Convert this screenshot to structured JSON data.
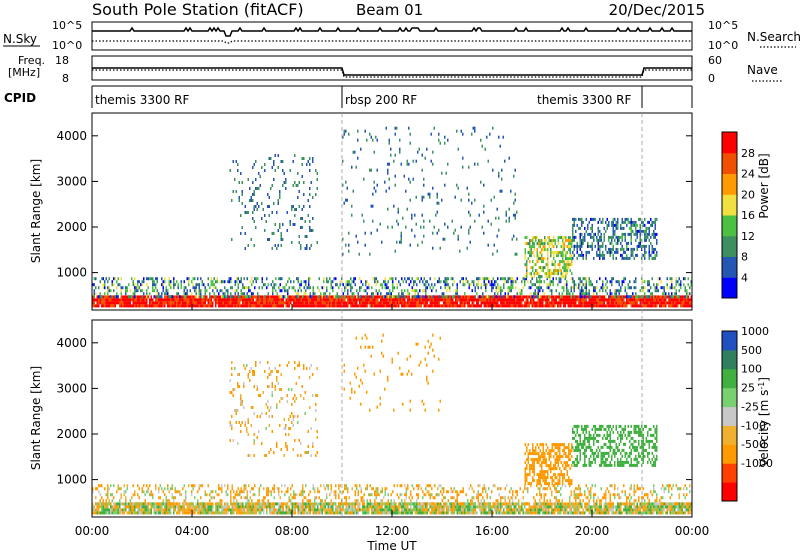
{
  "header": {
    "station": "South Pole Station (fitACF)",
    "beam": "Beam 01",
    "date": "20/Dec/2015"
  },
  "noise_panel": {
    "left_label": "N.Sky",
    "left_ticks": [
      "10^5",
      "10^0"
    ],
    "right_label": "N.Search",
    "right_ticks": [
      "10^5",
      "10^0"
    ]
  },
  "freq_panel": {
    "left_label_1": "Freq.",
    "left_label_2": "[MHz]",
    "left_ticks": [
      "18",
      "8"
    ],
    "right_label": "Nave",
    "right_ticks": [
      "60",
      "0"
    ]
  },
  "cpid_panel": {
    "label": "CPID",
    "programs": [
      {
        "name": "themis 3300 RF",
        "start_hour": 0,
        "end_hour": 10
      },
      {
        "name": "rbsp 200 RF",
        "start_hour": 10,
        "end_hour": 22
      },
      {
        "name": "themis 3300 RF",
        "start_hour": 22,
        "end_hour": 24
      }
    ]
  },
  "x_axis": {
    "label": "Time UT",
    "ticks": [
      "00:00",
      "04:00",
      "08:00",
      "12:00",
      "16:00",
      "20:00",
      "00:00"
    ],
    "range_hours": [
      0,
      24
    ]
  },
  "colors": {
    "power": [
      "#0000ff",
      "#2656b4",
      "#3c9060",
      "#4cc040",
      "#f0e040",
      "#ff9a00",
      "#f05000",
      "#ff0000"
    ],
    "velocity": [
      "#ff0000",
      "#ff4000",
      "#ff9a00",
      "#f0b030",
      "#c8c8c8",
      "#78d070",
      "#40b040",
      "#308060",
      "#2050c0"
    ]
  },
  "chart_data": [
    {
      "type": "heatmap",
      "title": "",
      "xlabel": "Time UT",
      "ylabel": "Slant Range [km]",
      "xlim": [
        0,
        24
      ],
      "ylim": [
        180,
        4500
      ],
      "y_ticks": [
        1000,
        2000,
        3000,
        4000
      ],
      "colorbar": {
        "label": "Power [dB]",
        "range": [
          0,
          32
        ],
        "ticks": [
          "4",
          "8",
          "12",
          "16",
          "20",
          "24",
          "28"
        ],
        "tick_values": [
          4,
          8,
          12,
          16,
          20,
          24,
          28
        ]
      },
      "echo_regions": [
        {
          "t0": 0.0,
          "t1": 24.0,
          "r0": 250,
          "r1": 500,
          "level": 30,
          "density": 0.95,
          "spread": 6
        },
        {
          "t0": 0.0,
          "t1": 24.0,
          "r0": 500,
          "r1": 900,
          "level": 10,
          "density": 0.35,
          "spread": 8
        },
        {
          "t0": 5.5,
          "t1": 9.0,
          "r0": 1500,
          "r1": 3600,
          "level": 8,
          "density": 0.1,
          "spread": 4
        },
        {
          "t0": 17.3,
          "t1": 19.2,
          "r0": 900,
          "r1": 1800,
          "level": 16,
          "density": 0.55,
          "spread": 6
        },
        {
          "t0": 19.2,
          "t1": 22.6,
          "r0": 1300,
          "r1": 2200,
          "level": 8,
          "density": 0.45,
          "spread": 5
        },
        {
          "t0": 10.0,
          "t1": 17.0,
          "r0": 1400,
          "r1": 4200,
          "level": 8,
          "density": 0.05,
          "spread": 4
        }
      ]
    },
    {
      "type": "heatmap",
      "title": "",
      "xlabel": "Time UT",
      "ylabel": "Slant Range [km]",
      "xlim": [
        0,
        24
      ],
      "ylim": [
        180,
        4500
      ],
      "y_ticks": [
        1000,
        2000,
        3000,
        4000
      ],
      "colorbar": {
        "label": "Velocity [m s^-1]",
        "ticks": [
          "1000",
          "500",
          "100",
          "25",
          "-25",
          "-100",
          "-500",
          "-1000"
        ],
        "tick_values": [
          1000,
          500,
          100,
          25,
          -25,
          -100,
          -500,
          -1000
        ]
      },
      "echo_regions": [
        {
          "t0": 0.0,
          "t1": 24.0,
          "r0": 250,
          "r1": 500,
          "level": 0,
          "density": 0.9,
          "spread": 3
        },
        {
          "t0": 0.0,
          "t1": 24.0,
          "r0": 500,
          "r1": 900,
          "level": -100,
          "density": 0.3,
          "spread": 3
        },
        {
          "t0": 5.5,
          "t1": 9.0,
          "r0": 1500,
          "r1": 3600,
          "level": -100,
          "density": 0.1,
          "spread": 2
        },
        {
          "t0": 17.3,
          "t1": 19.2,
          "r0": 900,
          "r1": 1800,
          "level": -300,
          "density": 0.55,
          "spread": 2
        },
        {
          "t0": 19.2,
          "t1": 22.6,
          "r0": 1300,
          "r1": 2200,
          "level": 300,
          "density": 0.45,
          "spread": 2
        },
        {
          "t0": 10.0,
          "t1": 14.0,
          "r0": 2500,
          "r1": 4200,
          "level": -300,
          "density": 0.05,
          "spread": 2
        }
      ]
    }
  ]
}
